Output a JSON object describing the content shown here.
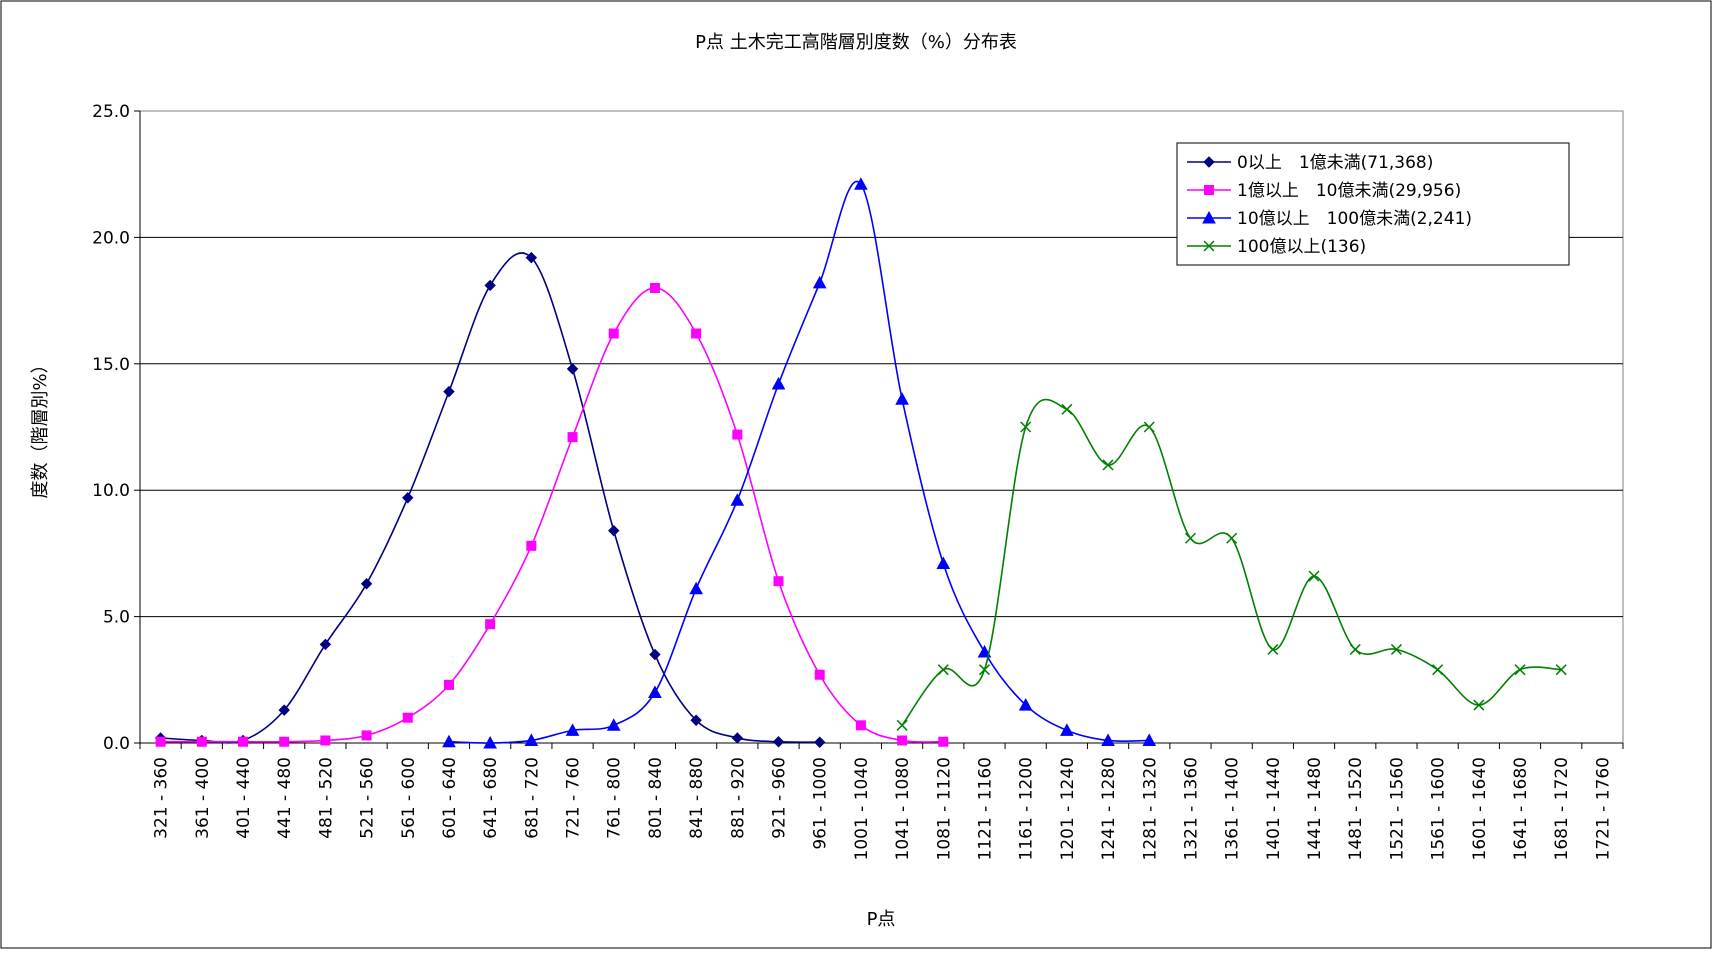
{
  "chart_data": {
    "type": "line",
    "title": "P点 土木完工高階層別度数（%）分布表",
    "xlabel": "P点",
    "ylabel": "度数（階層別%）",
    "categories": [
      "321 - 360",
      "361 - 400",
      "401 - 440",
      "441 - 480",
      "481 - 520",
      "521 - 560",
      "561 - 600",
      "601 - 640",
      "641 - 680",
      "681 - 720",
      "721 - 760",
      "761 - 800",
      "801 - 840",
      "841 - 880",
      "881 - 920",
      "921 - 960",
      "961 - 1000",
      "1001 - 1040",
      "1041 - 1080",
      "1081 - 1120",
      "1121 - 1160",
      "1161 - 1200",
      "1201 - 1240",
      "1241 - 1280",
      "1281 - 1320",
      "1321 - 1360",
      "1361 - 1400",
      "1401 - 1440",
      "1441 - 1480",
      "1481 - 1520",
      "1521 - 1560",
      "1561 - 1600",
      "1601 - 1640",
      "1641 - 1680",
      "1681 - 1720",
      "1721 - 1760"
    ],
    "ylim": [
      0,
      25
    ],
    "yticks": [
      "0.0",
      "5.0",
      "10.0",
      "15.0",
      "20.0",
      "25.0"
    ],
    "grid": true,
    "legend_position": "top-right",
    "series": [
      {
        "name": "0以上　1億未満(71,368)",
        "color": "#000080",
        "marker": "diamond",
        "values": [
          0.2,
          0.1,
          0.1,
          1.3,
          3.9,
          6.3,
          9.7,
          13.9,
          18.1,
          19.2,
          14.8,
          8.4,
          3.5,
          0.9,
          0.2,
          0.05,
          0.03,
          null,
          null,
          null,
          null,
          null,
          null,
          null,
          null,
          null,
          null,
          null,
          null,
          null,
          null,
          null,
          null,
          null,
          null,
          null
        ]
      },
      {
        "name": "1億以上　10億未満(29,956)",
        "color": "#ff00ff",
        "marker": "square",
        "values": [
          0.05,
          0.05,
          0.05,
          0.05,
          0.1,
          0.3,
          1.0,
          2.3,
          4.7,
          7.8,
          12.1,
          16.2,
          18.0,
          16.2,
          12.2,
          6.4,
          2.7,
          0.7,
          0.1,
          0.05,
          null,
          null,
          null,
          null,
          null,
          null,
          null,
          null,
          null,
          null,
          null,
          null,
          null,
          null,
          null,
          null
        ]
      },
      {
        "name": "10億以上　100億未満(2,241)",
        "color": "#0000ff",
        "marker": "triangle",
        "values": [
          null,
          null,
          null,
          null,
          null,
          null,
          null,
          0.05,
          0.0,
          0.1,
          0.5,
          0.7,
          2.0,
          6.1,
          9.6,
          14.2,
          18.2,
          22.1,
          13.6,
          7.1,
          3.6,
          1.5,
          0.5,
          0.1,
          0.1,
          null,
          null,
          null,
          null,
          null,
          null,
          null,
          null,
          null,
          null,
          null
        ]
      },
      {
        "name": "100億以上(136)",
        "color": "#008000",
        "marker": "x",
        "values": [
          null,
          null,
          null,
          null,
          null,
          null,
          null,
          null,
          null,
          null,
          null,
          null,
          null,
          null,
          null,
          null,
          null,
          null,
          0.7,
          2.9,
          2.9,
          12.5,
          13.2,
          11.0,
          12.5,
          8.1,
          8.1,
          3.7,
          6.6,
          3.7,
          3.7,
          2.9,
          1.5,
          2.9,
          2.9,
          null
        ]
      }
    ]
  }
}
